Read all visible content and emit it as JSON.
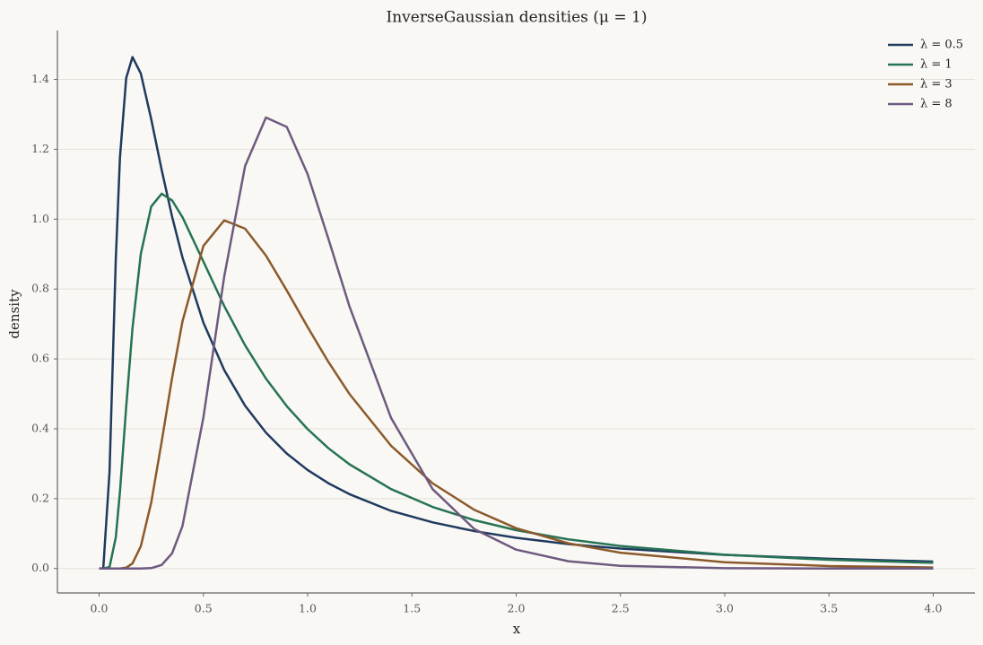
{
  "chart_data": {
    "type": "line",
    "title": "InverseGaussian densities (μ = 1)",
    "xlabel": "x",
    "ylabel": "density",
    "x": [
      0,
      0.02,
      0.05,
      0.08,
      0.1,
      0.13,
      0.16,
      0.2,
      0.25,
      0.3,
      0.35,
      0.4,
      0.5,
      0.6,
      0.7,
      0.8,
      0.9,
      1.0,
      1.1,
      1.2,
      1.4,
      1.6,
      1.8,
      2.0,
      2.25,
      2.5,
      3.0,
      3.5,
      4.0
    ],
    "series": [
      {
        "name": "λ = 0.5",
        "color": "#1f3a5f",
        "values": [
          0,
          0.001,
          0.277,
          0.885,
          1.177,
          1.404,
          1.464,
          1.417,
          1.286,
          1.141,
          1.007,
          0.89,
          0.704,
          0.568,
          0.466,
          0.389,
          0.329,
          0.282,
          0.244,
          0.213,
          0.165,
          0.132,
          0.107,
          0.088,
          0.07,
          0.057,
          0.039,
          0.028,
          0.02
        ]
      },
      {
        "name": "λ = 1",
        "color": "#267355",
        "values": [
          0,
          0,
          0.0043,
          0.0889,
          0.2198,
          0.4632,
          0.6874,
          0.9005,
          1.0363,
          1.0729,
          1.0537,
          1.0055,
          0.8788,
          0.7513,
          0.6388,
          0.5437,
          0.4646,
          0.3989,
          0.3442,
          0.2985,
          0.2274,
          0.1761,
          0.1383,
          0.1098,
          0.0835,
          0.0644,
          0.0394,
          0.0249,
          0.0162
        ]
      },
      {
        "name": "λ = 3",
        "color": "#8b5a2b",
        "values": [
          0,
          0,
          0,
          0,
          0.0001,
          0.0024,
          0.0145,
          0.0636,
          0.1892,
          0.3629,
          0.5456,
          0.708,
          0.9233,
          0.9966,
          0.9729,
          0.8959,
          0.7958,
          0.691,
          0.5909,
          0.5001,
          0.3514,
          0.2436,
          0.1678,
          0.1154,
          0.0722,
          0.0453,
          0.018,
          0.0072,
          0.003
        ]
      },
      {
        "name": "λ = 8",
        "color": "#6e5a80",
        "values": [
          0,
          0,
          0,
          0,
          0,
          0,
          0,
          0,
          0.0011,
          0.01,
          0.0436,
          0.1219,
          0.4319,
          0.8357,
          1.152,
          1.291,
          1.264,
          1.1284,
          0.9431,
          0.7513,
          0.4312,
          0.2267,
          0.1127,
          0.054,
          0.0208,
          0.0078,
          0.001,
          0.0001,
          0
        ]
      }
    ],
    "xlim": [
      -0.2,
      4.2
    ],
    "xticks": [
      {
        "value": 0,
        "label": "0.0"
      },
      0.5,
      {
        "value": 1,
        "label": "1.0"
      },
      1.5,
      {
        "value": 2,
        "label": "2.0"
      },
      2.5,
      {
        "value": 3,
        "label": "3.0"
      },
      3.5,
      {
        "value": 4,
        "label": "4.0"
      }
    ],
    "ylim": [
      -0.07,
      1.54
    ],
    "yticks": [
      {
        "value": 0,
        "label": "0.0"
      },
      0.2,
      0.4,
      0.6,
      0.8,
      {
        "value": 1,
        "label": "1.0"
      },
      1.2,
      1.4
    ],
    "grid": true,
    "legend": "upper right"
  }
}
